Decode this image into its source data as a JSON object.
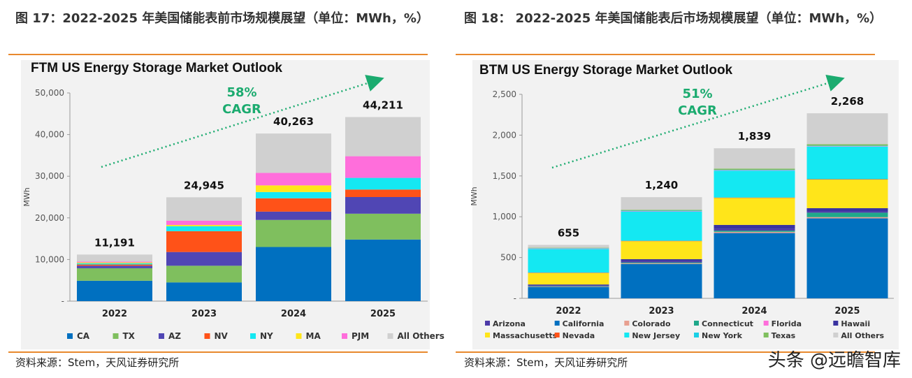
{
  "figures": [
    {
      "figure_title": "图 17：2022-2025 年美国储能表前市场规模展望（单位：MWh，%）",
      "source": "资料来源：Stem，天风证券研究所"
    },
    {
      "figure_title": "图 18： 2022-2025 年美国储能表后市场规模展望（单位：MWh，%）",
      "source": "资料来源：Stem，天风证券研究所"
    }
  ],
  "watermark": "头条 @远瞻智库",
  "chart_data": [
    {
      "type": "bar",
      "stacked": true,
      "title": "FTM US Energy Storage Market Outlook",
      "ylabel": "MWh",
      "xlabel": "",
      "ylim": [
        0,
        50000
      ],
      "yticks": [
        0,
        10000,
        20000,
        30000,
        40000,
        50000
      ],
      "ytick_labels": [
        "-",
        "10,000",
        "20,000",
        "30,000",
        "40,000",
        "50,000"
      ],
      "categories": [
        "2022",
        "2023",
        "2024",
        "2025"
      ],
      "totals": [
        11191,
        24945,
        40263,
        44211
      ],
      "total_labels": [
        "11,191",
        "24,945",
        "40,263",
        "44,211"
      ],
      "cagr": {
        "value": "58%",
        "label": "CAGR"
      },
      "legend_position": "bottom",
      "series": [
        {
          "name": "CA",
          "color": "#0070c0",
          "values": [
            4900,
            4500,
            13000,
            14800
          ]
        },
        {
          "name": "TX",
          "color": "#7fbf5e",
          "values": [
            3000,
            4000,
            6500,
            6200
          ]
        },
        {
          "name": "AZ",
          "color": "#5046b4",
          "values": [
            600,
            3300,
            2000,
            4000
          ]
        },
        {
          "name": "NV",
          "color": "#ff5218",
          "values": [
            300,
            5000,
            3200,
            1800
          ]
        },
        {
          "name": "NY",
          "color": "#14e8f2",
          "values": [
            300,
            1200,
            1500,
            2800
          ]
        },
        {
          "name": "MA",
          "color": "#ffe51a",
          "values": [
            200,
            300,
            1600,
            0
          ]
        },
        {
          "name": "PJM",
          "color": "#ff6edb",
          "values": [
            200,
            1000,
            3000,
            5200
          ]
        },
        {
          "name": "All Others",
          "color": "#d0d0d0",
          "values": [
            1691,
            5645,
            9463,
            9411
          ]
        }
      ]
    },
    {
      "type": "bar",
      "stacked": true,
      "title": "BTM US Energy Storage Market Outlook",
      "ylabel": "MWh",
      "xlabel": "",
      "ylim": [
        0,
        2500
      ],
      "yticks": [
        0,
        500,
        1000,
        1500,
        2000,
        2500
      ],
      "ytick_labels": [
        "-",
        "500",
        "1,000",
        "1,500",
        "2,000",
        "2,500"
      ],
      "categories": [
        "2022",
        "2023",
        "2024",
        "2025"
      ],
      "totals": [
        655,
        1240,
        1839,
        2268
      ],
      "total_labels": [
        "655",
        "1,240",
        "1,839",
        "2,268"
      ],
      "cagr": {
        "value": "51%",
        "label": "CAGR"
      },
      "legend_position": "bottom",
      "series": [
        {
          "name": "California",
          "color": "#0070c0",
          "values": [
            140,
            420,
            800,
            980
          ]
        },
        {
          "name": "Colorado",
          "color": "#e8a090",
          "values": [
            5,
            10,
            15,
            15
          ]
        },
        {
          "name": "Connecticut",
          "color": "#1fa88a",
          "values": [
            5,
            10,
            15,
            55
          ]
        },
        {
          "name": "Arizona",
          "color": "#4c3aa8",
          "values": [
            10,
            15,
            20,
            20
          ]
        },
        {
          "name": "Hawaii",
          "color": "#3a33a0",
          "values": [
            10,
            25,
            50,
            35
          ]
        },
        {
          "name": "Massachusetts",
          "color": "#ffe51a",
          "values": [
            140,
            220,
            330,
            350
          ]
        },
        {
          "name": "Nevada",
          "color": "#ff5218",
          "values": [
            5,
            5,
            5,
            5
          ]
        },
        {
          "name": "New Jersey",
          "color": "#14e8f2",
          "values": [
            290,
            360,
            330,
            400
          ]
        },
        {
          "name": "Florida",
          "color": "#ff6edb",
          "values": [
            5,
            5,
            5,
            5
          ]
        },
        {
          "name": "New York",
          "color": "#1ad0e6",
          "values": [
            5,
            5,
            5,
            5
          ]
        },
        {
          "name": "Texas",
          "color": "#7fbf5e",
          "values": [
            5,
            10,
            15,
            18
          ]
        },
        {
          "name": "All Others",
          "color": "#d0d0d0",
          "values": [
            35,
            155,
            249,
            380
          ]
        }
      ],
      "legend_rows": [
        [
          "Arizona",
          "California",
          "Colorado",
          "Connecticut",
          "Florida",
          "Hawaii"
        ],
        [
          "Massachusetts",
          "Nevada",
          "New Jersey",
          "New York",
          "Texas",
          "All Others"
        ]
      ]
    }
  ]
}
